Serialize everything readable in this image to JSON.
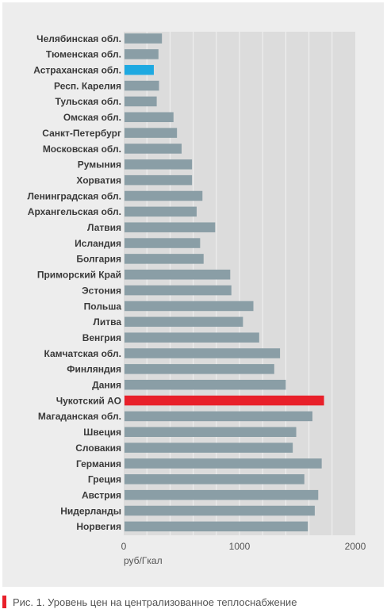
{
  "chart_data": {
    "type": "bar",
    "orientation": "horizontal",
    "categories": [
      "Челябинская обл.",
      "Тюменская обл.",
      "Астраханская обл.",
      "Респ. Карелия",
      "Тульская обл.",
      "Омская обл.",
      "Санкт-Петербург",
      "Московская обл.",
      "Румыния",
      "Хорватия",
      "Ленинградская обл.",
      "Архангельская обл.",
      "Латвия",
      "Исландия",
      "Болгария",
      "Приморский Край",
      "Эстония",
      "Польша",
      "Литва",
      "Венгрия",
      "Камчатская обл.",
      "Финляндия",
      "Дания",
      "Чукотский АО",
      "Магаданская обл.",
      "Швеция",
      "Словакия",
      "Германия",
      "Греция",
      "Австрия",
      "Нидерланды",
      "Норвегия"
    ],
    "values": [
      330,
      300,
      260,
      305,
      285,
      430,
      460,
      500,
      590,
      590,
      680,
      630,
      790,
      660,
      690,
      920,
      930,
      1120,
      1030,
      1170,
      1350,
      1300,
      1400,
      1730,
      1630,
      1490,
      1460,
      1710,
      1560,
      1680,
      1650,
      1590
    ],
    "highlights": {
      "Астраханская обл.": "#1ea9e1",
      "Чукотский АО": "#e8202a"
    },
    "default_bar_color": "#8a9ea6",
    "xlim": [
      0,
      2000
    ],
    "xticks": [
      0,
      1000,
      2000
    ],
    "xlabel": "руб/Гкал",
    "grid": true
  },
  "caption": {
    "text": "Рис. 1. Уровень цен на централизованное теплоснабжение",
    "marker_color": "#e8202a"
  }
}
